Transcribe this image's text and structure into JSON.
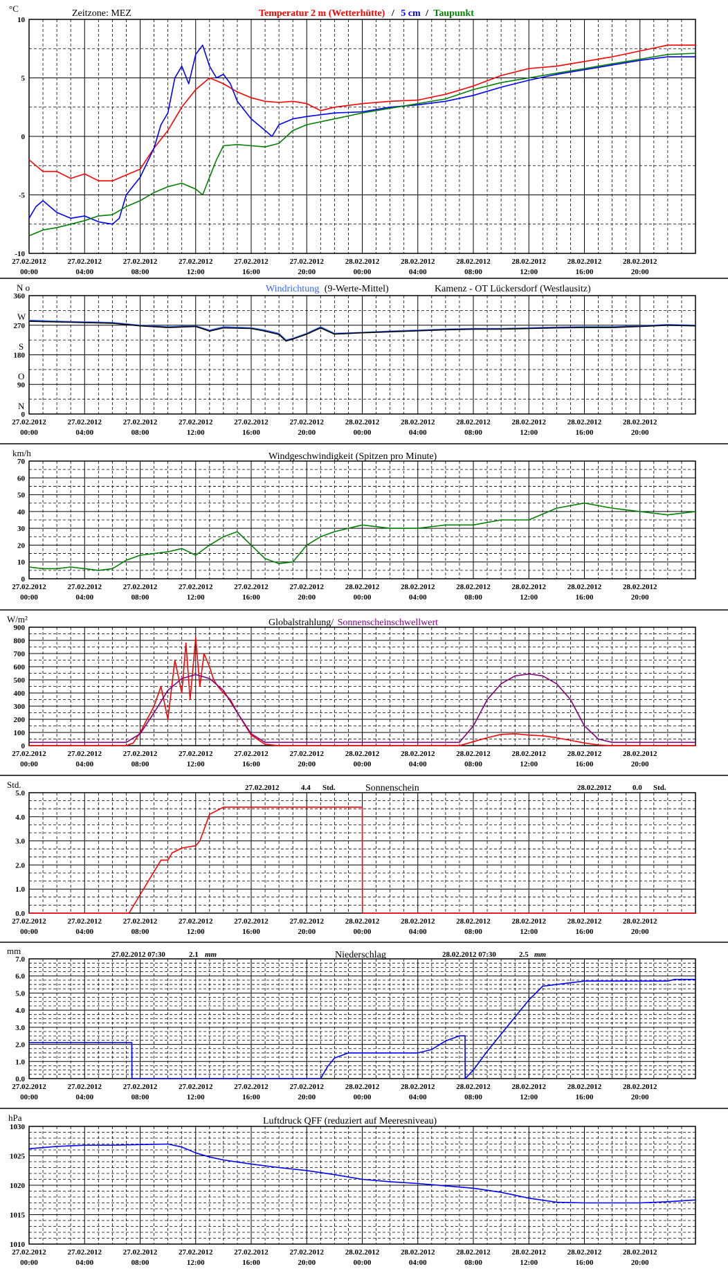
{
  "time_ticks": [
    [
      "27.02.2012",
      "00:00"
    ],
    [
      "27.02.2012",
      "04:00"
    ],
    [
      "27.02.2012",
      "08:00"
    ],
    [
      "27.02.2012",
      "12:00"
    ],
    [
      "27.02.2012",
      "16:00"
    ],
    [
      "27.02.2012",
      "20:00"
    ],
    [
      "28.02.2012",
      "00:00"
    ],
    [
      "28.02.2012",
      "04:00"
    ],
    [
      "28.02.2012",
      "08:00"
    ],
    [
      "28.02.2012",
      "12:00"
    ],
    [
      "28.02.2012",
      "16:00"
    ],
    [
      "28.02.2012",
      "20:00"
    ]
  ],
  "colors": {
    "red": "#ff0000",
    "blue": "#0000ff",
    "green": "#008000",
    "lightblue": "#3366ff",
    "purple": "#800080",
    "black": "#000000"
  },
  "panels": {
    "temperature": {
      "unit": "°C",
      "zone_label": "Zeitzone: MEZ",
      "legend": {
        "t2m": "Temperatur 2 m (Wetterhütte)",
        "sep1": "/",
        "t5cm": "5 cm",
        "sep2": "/",
        "dew": "Taupunkt"
      }
    },
    "wind_dir": {
      "unit": "N o",
      "legend_a": "Windrichtung",
      "legend_b": "(9-Werte-Mittel)",
      "station": "Kamenz - OT Lückersdorf (Westlausitz)",
      "compass": {
        "w": "W",
        "s": "S",
        "o": "O",
        "n": "N"
      }
    },
    "wind_speed": {
      "unit": "km/h",
      "title": "Windgeschwindigkeit (Spitzen pro Minute)"
    },
    "radiation": {
      "unit": "W/m²",
      "title_a": "Globalstrahlung/",
      "title_b": "Sonnenscheinschwellwert"
    },
    "sunshine": {
      "unit": "Std.",
      "title": "Sonnenschein",
      "day1": {
        "date": "27.02.2012",
        "value": "4.4",
        "unit": "Std."
      },
      "day2": {
        "date": "28.02.2012",
        "value": "0.0",
        "unit": "Std."
      }
    },
    "precip": {
      "unit": "mm",
      "title": "Niederschlag",
      "day1": {
        "date": "27.02.2012 07:30",
        "value": "2.1",
        "unit": "mm"
      },
      "day2": {
        "date": "28.02.2012 07:30",
        "value": "2.5",
        "unit": "mm"
      }
    },
    "pressure": {
      "unit": "hPa",
      "title": "Luftdruck QFF (reduziert auf Meeresniveau)"
    }
  },
  "chart_data": [
    {
      "type": "line",
      "title": "Temperatur 2 m (Wetterhütte) / 5 cm / Taupunkt",
      "ylabel": "°C",
      "x_unit": "hours since 27.02.2012 00:00",
      "ylim": [
        -10,
        10
      ],
      "yticks": [
        "10",
        "5",
        "0",
        "-5",
        "-10"
      ],
      "series": [
        {
          "name": "Temperatur 2 m (Wetterhütte)",
          "color": "red",
          "x": [
            0,
            0.5,
            1,
            2,
            3,
            4,
            5,
            6,
            7,
            8,
            9,
            10,
            11,
            12,
            13,
            14,
            15,
            16,
            17,
            18,
            19,
            20,
            21,
            22,
            24,
            26,
            28,
            30,
            32,
            34,
            36,
            38,
            40,
            42,
            44,
            46,
            48
          ],
          "y": [
            -2.0,
            -2.5,
            -3.0,
            -3.0,
            -3.6,
            -3.2,
            -3.8,
            -3.8,
            -3.3,
            -2.8,
            -1.0,
            0.5,
            2.5,
            4.0,
            5.0,
            4.5,
            3.8,
            3.3,
            3.0,
            2.9,
            3.0,
            2.8,
            2.2,
            2.5,
            2.8,
            3.0,
            3.1,
            3.6,
            4.3,
            5.2,
            5.8,
            6.0,
            6.4,
            6.8,
            7.3,
            7.8,
            7.8
          ]
        },
        {
          "name": "5 cm",
          "color": "blue",
          "x": [
            0,
            0.5,
            1,
            2,
            3,
            4,
            5,
            6,
            6.5,
            7,
            8,
            9,
            9.5,
            10,
            10.5,
            11,
            11.5,
            12,
            12.5,
            13,
            13.5,
            14,
            14.5,
            15,
            16,
            17,
            17.5,
            18,
            19,
            20,
            22,
            24,
            26,
            28,
            30,
            32,
            34,
            36,
            38,
            40,
            42,
            44,
            46,
            48
          ],
          "y": [
            -7.0,
            -6.0,
            -5.5,
            -6.5,
            -7.0,
            -6.8,
            -7.3,
            -7.5,
            -7.0,
            -5.0,
            -3.5,
            -1.0,
            1.0,
            2.0,
            5.0,
            6.0,
            4.5,
            7.0,
            7.8,
            6.0,
            5.0,
            5.3,
            4.5,
            3.0,
            1.5,
            0.5,
            0.0,
            1.0,
            1.5,
            1.7,
            2.0,
            2.1,
            2.5,
            2.7,
            3.0,
            3.5,
            4.2,
            4.8,
            5.3,
            5.7,
            6.1,
            6.5,
            6.8,
            6.8
          ]
        },
        {
          "name": "Taupunkt",
          "color": "green",
          "x": [
            0,
            1,
            2,
            3,
            4,
            5,
            6,
            7,
            8,
            9,
            10,
            11,
            12,
            12.5,
            13,
            13.5,
            14,
            15,
            16,
            17,
            18,
            19,
            20,
            22,
            24,
            26,
            28,
            30,
            32,
            34,
            36,
            38,
            40,
            42,
            44,
            46,
            48
          ],
          "y": [
            -8.5,
            -8.0,
            -7.8,
            -7.5,
            -7.2,
            -6.8,
            -6.7,
            -6.0,
            -5.5,
            -4.8,
            -4.3,
            -4.0,
            -4.5,
            -5.0,
            -3.5,
            -2.0,
            -0.8,
            -0.7,
            -0.8,
            -0.9,
            -0.6,
            0.5,
            1.0,
            1.5,
            2.0,
            2.4,
            2.8,
            3.2,
            4.0,
            4.6,
            5.0,
            5.4,
            5.8,
            6.2,
            6.6,
            7.0,
            7.1
          ]
        }
      ]
    },
    {
      "type": "line",
      "title": "Windrichtung (9-Werte-Mittel)",
      "ylabel": "N o",
      "x_unit": "hours since 27.02.2012 00:00",
      "ylim": [
        0,
        360
      ],
      "yticks": [
        "360",
        "270",
        "180",
        "90",
        "0"
      ],
      "series": [
        {
          "name": "Windrichtung",
          "color": "lightblue",
          "x": [
            0,
            2,
            4,
            6,
            8,
            10,
            12,
            13,
            14,
            16,
            17,
            18,
            18.5,
            19,
            20,
            21,
            22,
            24,
            26,
            28,
            30,
            32,
            34,
            36,
            38,
            40,
            42,
            44,
            46,
            48
          ],
          "y": [
            285,
            282,
            280,
            278,
            270,
            265,
            268,
            255,
            265,
            262,
            255,
            245,
            225,
            230,
            245,
            265,
            245,
            248,
            252,
            255,
            258,
            260,
            260,
            262,
            264,
            265,
            265,
            268,
            272,
            270
          ]
        },
        {
          "name": "9-Werte-Mittel",
          "color": "black",
          "x": [
            0,
            2,
            4,
            6,
            8,
            10,
            12,
            13,
            14,
            16,
            17,
            18,
            18.5,
            19,
            20,
            21,
            22,
            24,
            26,
            28,
            30,
            32,
            34,
            36,
            38,
            40,
            42,
            44,
            46,
            48
          ],
          "y": [
            282,
            280,
            278,
            276,
            268,
            263,
            266,
            252,
            262,
            260,
            252,
            242,
            222,
            228,
            243,
            262,
            243,
            247,
            250,
            253,
            256,
            258,
            258,
            260,
            262,
            263,
            263,
            266,
            270,
            268
          ]
        }
      ]
    },
    {
      "type": "line",
      "title": "Windgeschwindigkeit (Spitzen pro Minute)",
      "ylabel": "km/h",
      "x_unit": "hours since 27.02.2012 00:00",
      "ylim": [
        0,
        70
      ],
      "yticks": [
        "70",
        "60",
        "50",
        "40",
        "30",
        "20",
        "10",
        "0"
      ],
      "series": [
        {
          "name": "Windgeschwindigkeit",
          "color": "green",
          "x": [
            0,
            1,
            2,
            3,
            4,
            5,
            6,
            7,
            8,
            9,
            10,
            11,
            12,
            13,
            14,
            15,
            16,
            17,
            18,
            19,
            20,
            21,
            22,
            23,
            24,
            26,
            28,
            30,
            32,
            34,
            36,
            38,
            40,
            42,
            44,
            46,
            48
          ],
          "y": [
            7,
            6,
            6,
            7,
            6,
            5,
            6,
            11,
            14,
            15,
            16,
            18,
            14,
            20,
            25,
            28,
            20,
            12,
            9,
            10,
            20,
            25,
            28,
            30,
            32,
            30,
            30,
            32,
            32,
            35,
            35,
            42,
            45,
            42,
            40,
            38,
            40
          ]
        }
      ]
    },
    {
      "type": "line",
      "title": "Globalstrahlung/ Sonnenscheinschwellwert",
      "ylabel": "W/m²",
      "x_unit": "hours since 27.02.2012 00:00",
      "ylim": [
        0,
        900
      ],
      "yticks": [
        "900",
        "800",
        "700",
        "600",
        "500",
        "400",
        "300",
        "200",
        "100",
        "0"
      ],
      "series": [
        {
          "name": "Globalstrahlung",
          "color": "red",
          "x": [
            0,
            7,
            7.5,
            8,
            9,
            9.5,
            10,
            10.5,
            11,
            11.3,
            11.6,
            12,
            12.3,
            12.6,
            13,
            13.3,
            13.6,
            14,
            14.5,
            15,
            16,
            17,
            18,
            24,
            31,
            32,
            33,
            34,
            35,
            36,
            37,
            38,
            39,
            40,
            41,
            42,
            48
          ],
          "y": [
            0,
            0,
            20,
            100,
            300,
            450,
            200,
            650,
            400,
            780,
            350,
            820,
            450,
            700,
            600,
            500,
            450,
            400,
            350,
            250,
            80,
            10,
            0,
            0,
            0,
            30,
            60,
            85,
            90,
            80,
            75,
            60,
            40,
            20,
            5,
            0,
            0
          ]
        },
        {
          "name": "Sonnenscheinschwellwert",
          "color": "purple",
          "x": [
            0,
            7,
            8,
            9,
            10,
            11,
            12,
            13,
            14,
            15,
            16,
            17,
            18,
            24,
            31,
            32,
            33,
            34,
            35,
            36,
            37,
            38,
            39,
            40,
            41,
            42,
            48
          ],
          "y": [
            25,
            25,
            90,
            250,
            420,
            510,
            540,
            510,
            420,
            250,
            90,
            25,
            25,
            25,
            25,
            150,
            350,
            470,
            530,
            545,
            530,
            470,
            350,
            150,
            50,
            25,
            25
          ]
        }
      ]
    },
    {
      "type": "line",
      "title": "Sonnenschein",
      "ylabel": "Std.",
      "x_unit": "hours since 27.02.2012 00:00",
      "ylim": [
        0,
        5
      ],
      "yticks": [
        "5.0",
        "4.0",
        "3.0",
        "2.0",
        "1.0",
        "0.0"
      ],
      "series": [
        {
          "name": "Sonnenschein",
          "color": "red",
          "x": [
            0,
            7.2,
            9.5,
            10,
            10.3,
            11,
            12,
            12.3,
            13,
            14,
            24,
            24.01,
            48
          ],
          "y": [
            0,
            0,
            2.2,
            2.2,
            2.5,
            2.7,
            2.8,
            3.0,
            4.1,
            4.4,
            4.4,
            0,
            0
          ]
        }
      ]
    },
    {
      "type": "line",
      "title": "Niederschlag",
      "ylabel": "mm",
      "x_unit": "hours since 27.02.2012 00:00",
      "ylim": [
        0,
        7
      ],
      "yticks": [
        "7.0",
        "6.0",
        "5.0",
        "4.0",
        "3.0",
        "2.0",
        "1.0",
        "0.0"
      ],
      "series": [
        {
          "name": "Niederschlag",
          "color": "blue",
          "x": [
            0,
            7.4,
            7.41,
            21,
            21.5,
            22,
            23,
            24,
            28,
            29,
            30,
            31,
            31.4,
            31.41,
            32,
            33,
            34,
            35,
            36,
            37,
            38,
            40,
            44,
            46,
            46.5,
            48
          ],
          "y": [
            2.1,
            2.1,
            0,
            0,
            0.7,
            1.2,
            1.5,
            1.5,
            1.5,
            1.7,
            2.2,
            2.5,
            2.5,
            0,
            0.5,
            1.6,
            2.6,
            3.6,
            4.6,
            5.4,
            5.5,
            5.7,
            5.7,
            5.7,
            5.8,
            5.8
          ]
        }
      ]
    },
    {
      "type": "line",
      "title": "Luftdruck QFF (reduziert auf Meeresniveau)",
      "ylabel": "hPa",
      "x_unit": "hours since 27.02.2012 00:00",
      "ylim": [
        1010,
        1030
      ],
      "yticks": [
        "1030",
        "1025",
        "1020",
        "1015",
        "1010"
      ],
      "series": [
        {
          "name": "Luftdruck QFF",
          "color": "blue",
          "x": [
            0,
            2,
            4,
            6,
            8,
            10,
            11,
            12,
            13,
            14,
            16,
            18,
            20,
            22,
            24,
            26,
            28,
            30,
            32,
            34,
            36,
            38,
            40,
            42,
            44,
            46,
            48
          ],
          "y": [
            1026.2,
            1026.6,
            1026.8,
            1026.8,
            1026.9,
            1027.0,
            1026.5,
            1025.5,
            1024.8,
            1024.3,
            1023.6,
            1023.0,
            1022.5,
            1021.8,
            1021.0,
            1020.6,
            1020.3,
            1019.9,
            1019.5,
            1018.8,
            1017.8,
            1017.1,
            1017.0,
            1017.0,
            1017.0,
            1017.2,
            1017.5
          ]
        }
      ]
    }
  ]
}
